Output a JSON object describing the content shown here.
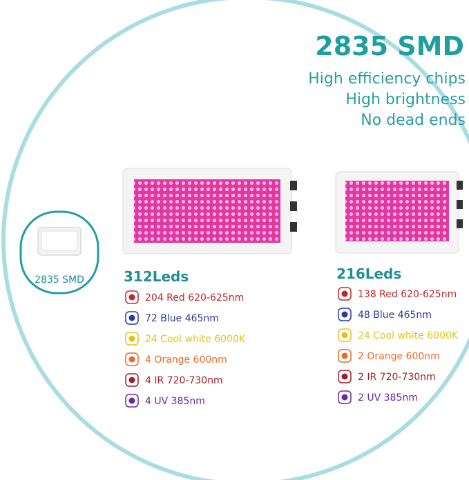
{
  "header": {
    "title": "2835 SMD",
    "features": [
      "High efficiency chips",
      "High brightness",
      "No dead ends"
    ]
  },
  "chip_label": "2835 SMD",
  "panels": [
    {
      "title": "312Leds",
      "items": [
        {
          "text": "204 Red 620-625nm",
          "color": "#c0272d"
        },
        {
          "text": "72 Blue 465nm",
          "color": "#2b3a9e"
        },
        {
          "text": "24 Cool white 6000K",
          "color": "#e8c01c"
        },
        {
          "text": "4 Orange 600nm",
          "color": "#e8692a"
        },
        {
          "text": "4 IR 720-730nm",
          "color": "#a01e2a"
        },
        {
          "text": "4 UV 385nm",
          "color": "#6a2a9e"
        }
      ]
    },
    {
      "title": "216Leds",
      "items": [
        {
          "text": "138 Red 620-625nm",
          "color": "#c0272d"
        },
        {
          "text": "48 Blue 465nm",
          "color": "#2b3a9e"
        },
        {
          "text": "24 Cool white 6000K",
          "color": "#e8c01c"
        },
        {
          "text": "2 Orange 600nm",
          "color": "#e8692a"
        },
        {
          "text": "2 IR 720-730nm",
          "color": "#a01e2a"
        },
        {
          "text": "2 UV 385nm",
          "color": "#6a2a9e"
        }
      ]
    }
  ]
}
